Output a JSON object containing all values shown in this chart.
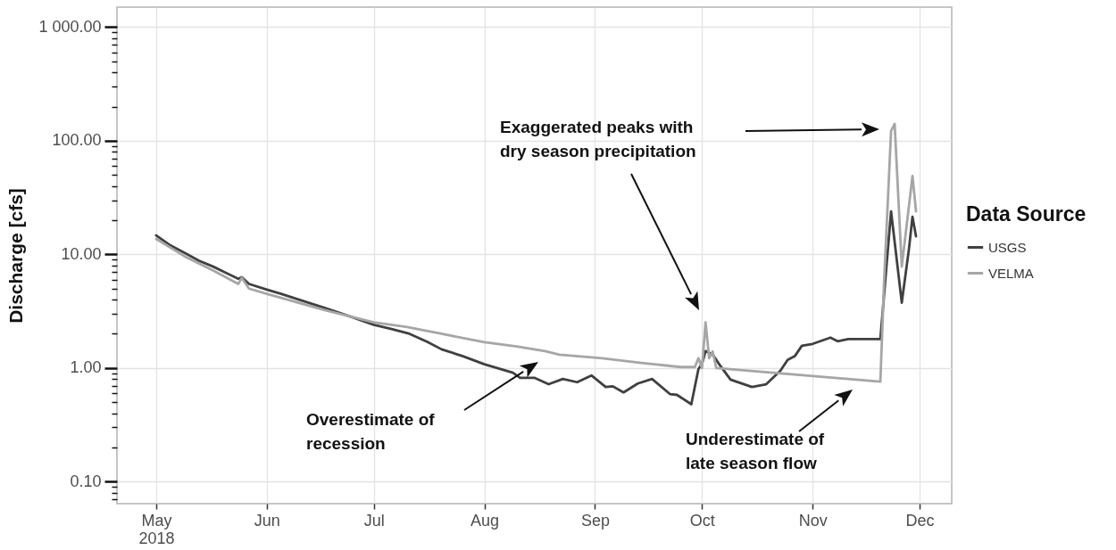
{
  "chart_data": {
    "type": "line",
    "ylabel": "Discharge [cfs]",
    "legend_title": "Data Source",
    "legend": "right",
    "log": true,
    "grid": true,
    "line_style": "solid",
    "xlim": [
      "2018-04-20",
      "2018-12-10"
    ],
    "xticks": [
      {
        "value": "2018-05-01",
        "label": "May\n2018"
      },
      {
        "value": "2018-06-01",
        "label": "Jun"
      },
      {
        "value": "2018-07-01",
        "label": "Jul"
      },
      {
        "value": "2018-08-01",
        "label": "Aug"
      },
      {
        "value": "2018-09-01",
        "label": "Sep"
      },
      {
        "value": "2018-10-01",
        "label": "Oct"
      },
      {
        "value": "2018-11-01",
        "label": "Nov"
      },
      {
        "value": "2018-12-01",
        "label": "Dec"
      }
    ],
    "ylim": [
      0.064,
      1500
    ],
    "yticks": [
      {
        "value": 0.07,
        "label": null
      },
      {
        "value": 0.08,
        "label": null
      },
      {
        "value": 0.09,
        "label": null
      },
      {
        "value": 0.1,
        "label": "0.10"
      },
      {
        "value": 0.2,
        "label": null
      },
      {
        "value": 0.3,
        "label": null
      },
      {
        "value": 0.4,
        "label": null
      },
      {
        "value": 0.5,
        "label": null
      },
      {
        "value": 0.6,
        "label": null
      },
      {
        "value": 0.7,
        "label": null
      },
      {
        "value": 0.8,
        "label": null
      },
      {
        "value": 0.9,
        "label": null
      },
      {
        "value": 1,
        "label": "1.00"
      },
      {
        "value": 2,
        "label": null
      },
      {
        "value": 3,
        "label": null
      },
      {
        "value": 4,
        "label": null
      },
      {
        "value": 5,
        "label": null
      },
      {
        "value": 6,
        "label": null
      },
      {
        "value": 7,
        "label": null
      },
      {
        "value": 8,
        "label": null
      },
      {
        "value": 9,
        "label": null
      },
      {
        "value": 10,
        "label": "10.00"
      },
      {
        "value": 20,
        "label": null
      },
      {
        "value": 30,
        "label": null
      },
      {
        "value": 40,
        "label": null
      },
      {
        "value": 50,
        "label": null
      },
      {
        "value": 60,
        "label": null
      },
      {
        "value": 70,
        "label": null
      },
      {
        "value": 80,
        "label": null
      },
      {
        "value": 90,
        "label": null
      },
      {
        "value": 100,
        "label": "100.00"
      },
      {
        "value": 200,
        "label": null
      },
      {
        "value": 300,
        "label": null
      },
      {
        "value": 400,
        "label": null
      },
      {
        "value": 500,
        "label": null
      },
      {
        "value": 600,
        "label": null
      },
      {
        "value": 700,
        "label": null
      },
      {
        "value": 800,
        "label": null
      },
      {
        "value": 900,
        "label": null
      },
      {
        "value": 1000,
        "label": "1 000.00"
      }
    ],
    "series": [
      {
        "name": "USGS",
        "color": "#404040",
        "x": [
          "2018-05-01",
          "2018-05-05",
          "2018-05-09",
          "2018-05-13",
          "2018-05-17",
          "2018-05-24",
          "2018-05-25",
          "2018-05-27",
          "2018-06-01",
          "2018-06-05",
          "2018-06-10",
          "2018-06-17",
          "2018-06-25",
          "2018-07-01",
          "2018-07-06",
          "2018-07-11",
          "2018-07-16",
          "2018-07-20",
          "2018-07-26",
          "2018-08-01",
          "2018-08-09",
          "2018-08-11",
          "2018-08-15",
          "2018-08-19",
          "2018-08-23",
          "2018-08-27",
          "2018-08-31",
          "2018-09-04",
          "2018-09-06",
          "2018-09-09",
          "2018-09-13",
          "2018-09-17",
          "2018-09-22",
          "2018-09-24",
          "2018-09-28",
          "2018-09-30",
          "2018-10-01",
          "2018-10-02",
          "2018-10-04",
          "2018-10-06",
          "2018-10-09",
          "2018-10-15",
          "2018-10-19",
          "2018-10-23",
          "2018-10-25",
          "2018-10-27",
          "2018-10-29",
          "2018-11-01",
          "2018-11-06",
          "2018-11-08",
          "2018-11-11",
          "2018-11-20",
          "2018-11-23",
          "2018-11-26",
          "2018-11-28",
          "2018-11-29",
          "2018-11-30"
        ],
        "values": [
          14.7,
          12.0,
          10.3,
          8.8,
          7.8,
          6.1,
          6.3,
          5.5,
          4.9,
          4.5,
          4.0,
          3.4,
          2.8,
          2.4,
          2.2,
          2.0,
          1.7,
          1.46,
          1.27,
          1.08,
          0.91,
          0.82,
          0.82,
          0.72,
          0.8,
          0.75,
          0.86,
          0.68,
          0.69,
          0.61,
          0.73,
          0.8,
          0.59,
          0.58,
          0.48,
          0.98,
          1.09,
          1.41,
          1.31,
          1.06,
          0.79,
          0.68,
          0.72,
          0.95,
          1.18,
          1.27,
          1.57,
          1.63,
          1.85,
          1.72,
          1.8,
          1.8,
          23.9,
          3.76,
          11.1,
          21.4,
          14.4
        ]
      },
      {
        "name": "VELMA",
        "color": "#a6a6a6",
        "x": [
          "2018-05-01",
          "2018-05-09",
          "2018-05-17",
          "2018-05-24",
          "2018-05-25",
          "2018-05-27",
          "2018-06-01",
          "2018-06-17",
          "2018-07-01",
          "2018-07-10",
          "2018-07-20",
          "2018-08-01",
          "2018-08-10",
          "2018-08-18",
          "2018-08-22",
          "2018-09-03",
          "2018-09-14",
          "2018-09-25",
          "2018-09-29",
          "2018-09-30",
          "2018-10-01",
          "2018-10-02",
          "2018-10-03",
          "2018-10-04",
          "2018-10-05",
          "2018-11-20",
          "2018-11-21",
          "2018-11-23",
          "2018-11-24",
          "2018-11-26",
          "2018-11-29",
          "2018-11-30"
        ],
        "values": [
          13.7,
          9.6,
          7.2,
          5.5,
          6.2,
          5.0,
          4.5,
          3.25,
          2.52,
          2.3,
          2.0,
          1.69,
          1.55,
          1.41,
          1.31,
          1.22,
          1.11,
          1.02,
          1.02,
          1.22,
          1.0,
          2.52,
          1.22,
          1.4,
          1.0,
          0.76,
          5.4,
          122,
          141,
          7.8,
          49,
          23.9
        ]
      }
    ],
    "annotations": [
      "Overestimate of\nrecession",
      "Exaggerated peaks with\ndry season precipitation",
      "Underestimate of\nlate season flow"
    ]
  }
}
